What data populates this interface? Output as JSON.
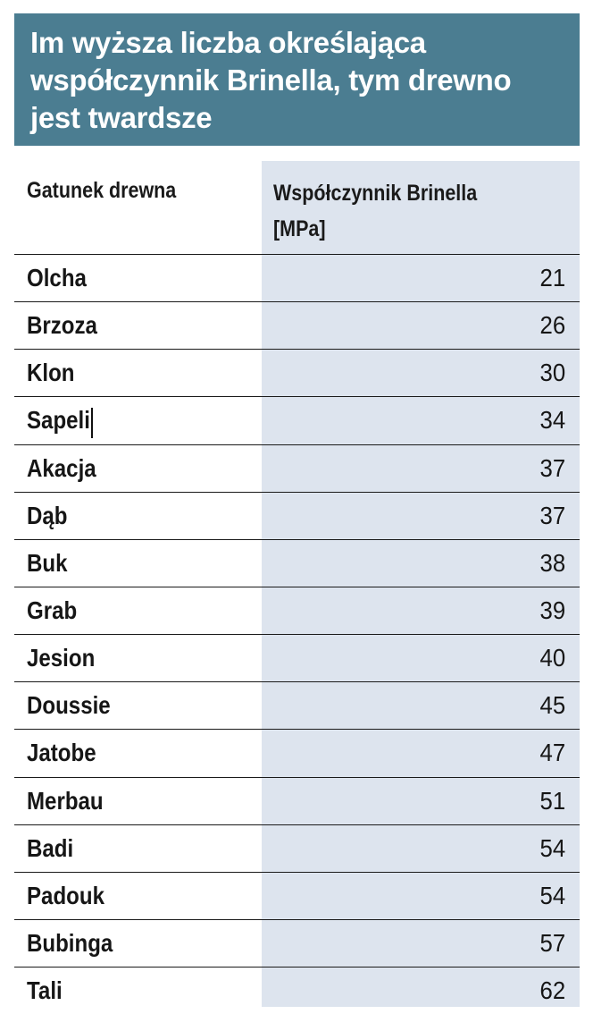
{
  "title": "Im wyższa liczba określająca współczynnik Brinella, tym drewno jest twardsze",
  "header": {
    "col_wood": "Gatunek drewna",
    "col_value_line1": "Współczynnik Brinella",
    "col_value_line2": "[MPa]"
  },
  "colors": {
    "title_background": "#4b7d91",
    "title_text": "#ffffff",
    "value_column_background": "#dde4ee",
    "row_rule": "#1a1a1a"
  },
  "chart_data": {
    "type": "table",
    "title": "Im wyższa liczba określająca współczynnik Brinella, tym drewno jest twardsze",
    "columns": [
      "Gatunek drewna",
      "Współczynnik Brinella [MPa]"
    ],
    "rows": [
      {
        "name": "Olcha",
        "value": "21"
      },
      {
        "name": "Brzoza",
        "value": "26"
      },
      {
        "name": "Klon",
        "value": "30"
      },
      {
        "name": "Sapeli",
        "value": "34"
      },
      {
        "name": "Akacja",
        "value": "37"
      },
      {
        "name": "Dąb",
        "value": "37"
      },
      {
        "name": "Buk",
        "value": "38"
      },
      {
        "name": "Grab",
        "value": "39"
      },
      {
        "name": "Jesion",
        "value": "40"
      },
      {
        "name": "Doussie",
        "value": "45"
      },
      {
        "name": "Jatobe",
        "value": "47"
      },
      {
        "name": "Merbau",
        "value": "51"
      },
      {
        "name": "Badi",
        "value": "54"
      },
      {
        "name": "Padouk",
        "value": "54"
      },
      {
        "name": "Bubinga",
        "value": "57"
      },
      {
        "name": "Tali",
        "value": "62"
      }
    ]
  }
}
